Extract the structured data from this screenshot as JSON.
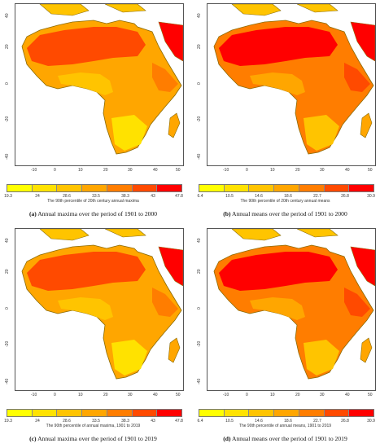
{
  "yticks": [
    "40",
    "20",
    "0",
    "-20",
    "-40"
  ],
  "xticks": [
    "-10",
    "0",
    "10",
    "20",
    "30",
    "40",
    "50"
  ],
  "colors": {
    "palette_maxima": [
      "#ffff00",
      "#ffe200",
      "#ffc400",
      "#ffa600",
      "#ff7d00",
      "#ff4a00",
      "#ff0000"
    ],
    "palette_means": [
      "#ffff00",
      "#ffe200",
      "#ffc400",
      "#ffa600",
      "#ff7d00",
      "#ff4a00",
      "#ff0000"
    ],
    "ocean": "#ffffff",
    "outline": "#8a6a00"
  },
  "panels": [
    {
      "id": "a",
      "legend_ticks": [
        "19.3",
        "24",
        "28.6",
        "33.5",
        "38.3",
        "43",
        "47.8"
      ],
      "legend_title": "The 90th percentile of 20th century annual maxima",
      "caption_label": "(a)",
      "caption_text": "Annual maxima over the period of 1901 to 2000"
    },
    {
      "id": "b",
      "legend_ticks": [
        "6.4",
        "10.5",
        "14.6",
        "18.6",
        "22.7",
        "26.8",
        "30.9"
      ],
      "legend_title": "The 90th percentile of 20th century annual means",
      "caption_label": "(b)",
      "caption_text": "Annual means over the period of 1901 to 2000"
    },
    {
      "id": "c",
      "legend_ticks": [
        "19.3",
        "24",
        "28.6",
        "33.5",
        "38.3",
        "43",
        "47.8"
      ],
      "legend_title": "The 90th percentile of annual maxima, 1901 to 2019",
      "caption_label": "(c)",
      "caption_text": "Annual maxima over the period of 1901 to 2019"
    },
    {
      "id": "d",
      "legend_ticks": [
        "6.4",
        "10.5",
        "14.6",
        "18.6",
        "22.7",
        "26.8",
        "30.9"
      ],
      "legend_title": "The 90th percentile of annual means, 1901 to 2019",
      "caption_label": "(d)",
      "caption_text": "Annual means over the period of 1901 to 2019"
    }
  ]
}
